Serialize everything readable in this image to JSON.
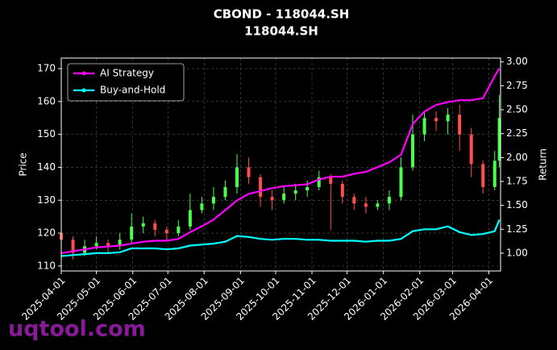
{
  "chart_data": {
    "type": "candlestick",
    "title": "CBOND - 118044.SH",
    "subtitle": "118044.SH",
    "y_label": "Price",
    "y2_label": "Return",
    "watermark": "uqtool.com",
    "x": [
      "2025-04-01",
      "2025-04-11",
      "2025-04-21",
      "2025-05-01",
      "2025-05-11",
      "2025-05-21",
      "2025-05-31",
      "2025-06-10",
      "2025-06-20",
      "2025-06-30",
      "2025-07-10",
      "2025-07-20",
      "2025-07-30",
      "2025-08-09",
      "2025-08-19",
      "2025-08-29",
      "2025-09-08",
      "2025-09-18",
      "2025-09-28",
      "2025-10-08",
      "2025-10-18",
      "2025-10-28",
      "2025-11-07",
      "2025-11-17",
      "2025-11-27",
      "2025-12-07",
      "2025-12-17",
      "2025-12-27",
      "2026-01-06",
      "2026-01-16",
      "2026-01-26",
      "2026-02-05",
      "2026-02-15",
      "2026-02-25",
      "2026-03-07",
      "2026-03-17",
      "2026-03-27",
      "2026-04-06",
      "2026-04-10"
    ],
    "open": [
      120,
      118,
      114,
      116,
      117,
      116,
      118,
      122,
      123,
      121,
      120,
      122,
      127,
      129,
      131,
      134,
      140,
      137,
      131,
      130,
      132,
      133,
      134,
      137,
      135,
      131,
      129,
      128,
      129,
      131,
      140,
      150,
      155,
      154,
      156,
      150,
      141,
      134,
      142
    ],
    "high": [
      122,
      119,
      118,
      119,
      118,
      120,
      126,
      125,
      124,
      122,
      124,
      132,
      131,
      134,
      136,
      144,
      143,
      138,
      133,
      134,
      135,
      136,
      139,
      138,
      136,
      132,
      131,
      130,
      133,
      143,
      156,
      157,
      157,
      158,
      159,
      152,
      142,
      145,
      162
    ],
    "low": [
      115,
      112,
      113,
      115,
      114,
      115,
      117,
      120,
      119,
      118,
      119,
      121,
      126,
      127,
      130,
      132,
      135,
      128,
      127,
      129,
      130,
      131,
      133,
      121,
      129,
      127,
      126,
      127,
      127,
      130,
      139,
      148,
      151,
      150,
      145,
      137,
      132,
      133,
      140
    ],
    "close": [
      118,
      114,
      116,
      117,
      116,
      118,
      122,
      123,
      121,
      120,
      122,
      127,
      129,
      131,
      134,
      140,
      137,
      131,
      130,
      132,
      133,
      134,
      137,
      135,
      131,
      129,
      128,
      129,
      131,
      140,
      150,
      155,
      154,
      156,
      150,
      141,
      134,
      142,
      155
    ],
    "up_color": "#4cff4c",
    "down_color": "#ff4c4c",
    "series": [
      {
        "name": "AI Strategy",
        "color": "#ff00ff",
        "axis": "y2",
        "values": [
          1.0,
          1.02,
          1.04,
          1.06,
          1.07,
          1.08,
          1.1,
          1.12,
          1.13,
          1.13,
          1.15,
          1.22,
          1.28,
          1.35,
          1.45,
          1.55,
          1.62,
          1.65,
          1.68,
          1.7,
          1.71,
          1.72,
          1.77,
          1.8,
          1.8,
          1.83,
          1.85,
          1.9,
          1.95,
          2.03,
          2.35,
          2.48,
          2.55,
          2.58,
          2.6,
          2.6,
          2.62,
          2.85,
          2.93
        ]
      },
      {
        "name": "Buy-and-Hold",
        "color": "#00ffff",
        "axis": "y2",
        "values": [
          0.97,
          0.98,
          0.99,
          1.0,
          1.0,
          1.01,
          1.05,
          1.05,
          1.05,
          1.04,
          1.05,
          1.08,
          1.09,
          1.1,
          1.12,
          1.18,
          1.17,
          1.15,
          1.14,
          1.15,
          1.15,
          1.14,
          1.14,
          1.13,
          1.13,
          1.13,
          1.12,
          1.13,
          1.13,
          1.15,
          1.23,
          1.25,
          1.25,
          1.28,
          1.22,
          1.19,
          1.2,
          1.23,
          1.35
        ]
      }
    ],
    "xlim": [
      "2025-04-01",
      "2026-04-11"
    ],
    "xticks": [
      "2025-04-01",
      "2025-05-01",
      "2025-06-01",
      "2025-07-01",
      "2025-08-01",
      "2025-09-01",
      "2025-10-01",
      "2025-11-01",
      "2025-12-01",
      "2026-01-01",
      "2026-02-01",
      "2026-03-01",
      "2026-04-01"
    ],
    "ylim": [
      108.5,
      173.2
    ],
    "yticks": [
      110,
      120,
      130,
      140,
      150,
      160,
      170
    ],
    "y2lim": [
      0.814,
      3.04
    ],
    "y2ticks": [
      {
        "value": 1,
        "label": "1.00"
      },
      1.25,
      {
        "value": 1.5,
        "label": "1.50"
      },
      1.75,
      {
        "value": 2,
        "label": "2.00"
      },
      2.25,
      {
        "value": 2.5,
        "label": "2.50"
      },
      2.75,
      {
        "value": 3,
        "label": "3.00"
      }
    ],
    "grid": true,
    "legend": "upper left"
  }
}
